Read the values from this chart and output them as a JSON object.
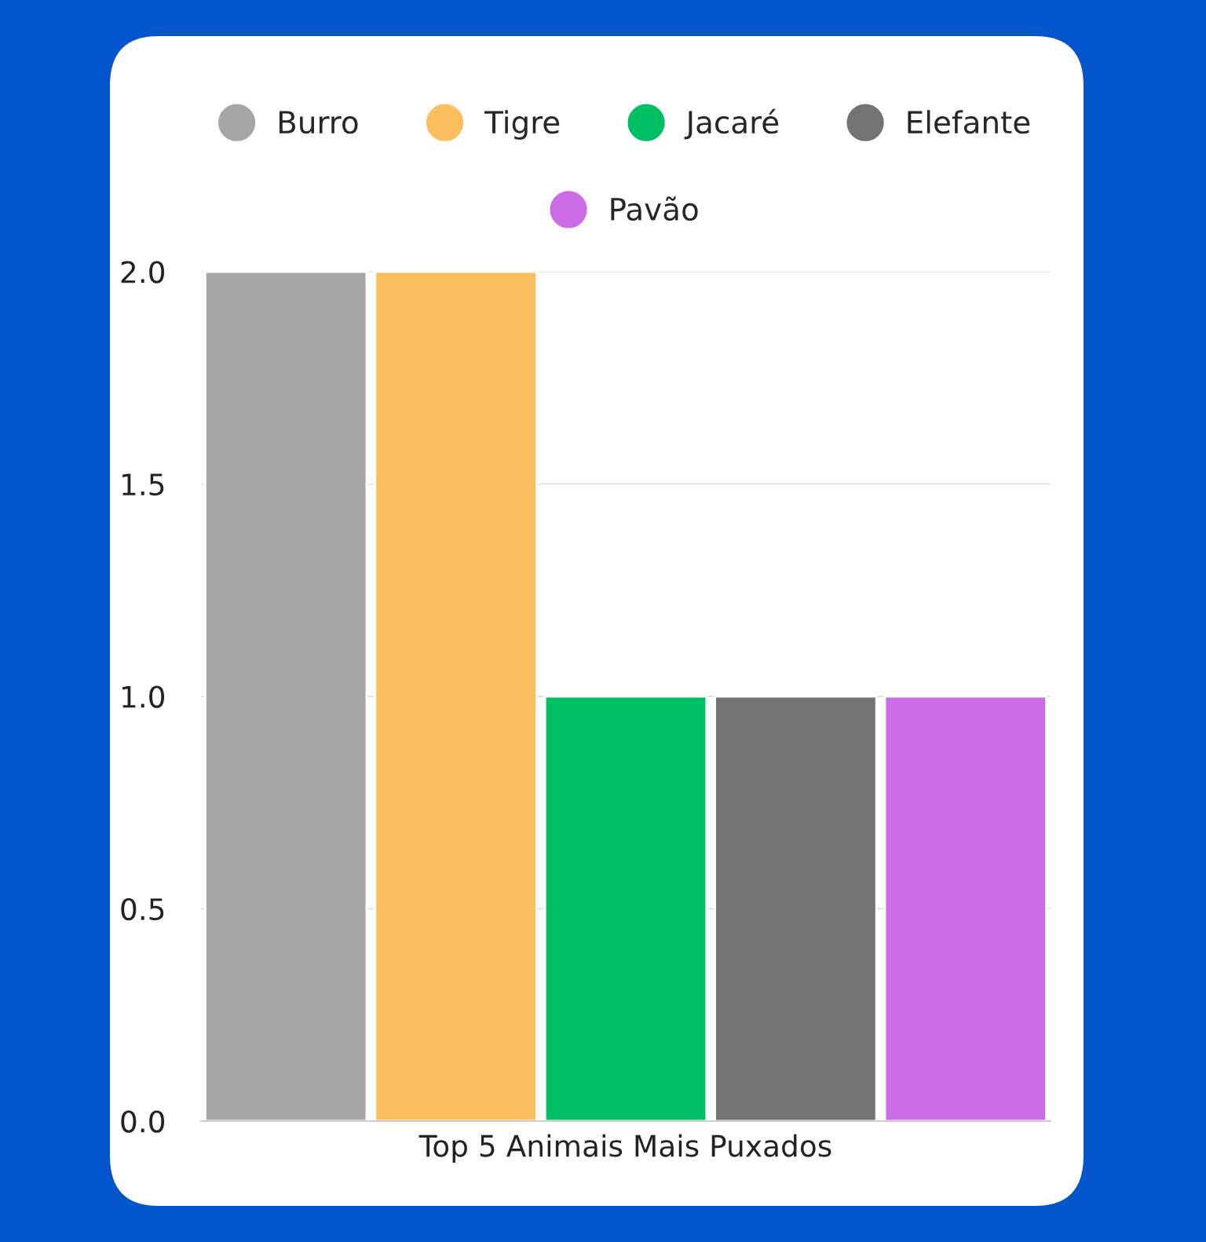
{
  "chart_data": {
    "type": "bar",
    "categories": [
      "Top 5 Animais Mais Puxados"
    ],
    "series": [
      {
        "name": "Burro",
        "color": "#a6a6a6",
        "values": [
          2
        ]
      },
      {
        "name": "Tigre",
        "color": "#fdbf5e",
        "values": [
          2
        ]
      },
      {
        "name": "Jacaré",
        "color": "#00bf63",
        "values": [
          1
        ]
      },
      {
        "name": "Elefante",
        "color": "#737373",
        "values": [
          1
        ]
      },
      {
        "name": "Pavão",
        "color": "#cb6ce6",
        "values": [
          1
        ]
      }
    ],
    "ylim": [
      0,
      2
    ],
    "yticks": [
      {
        "value": 0,
        "label": "0.0"
      },
      {
        "value": 0.5,
        "label": "0.5"
      },
      {
        "value": 1,
        "label": "1.0"
      },
      {
        "value": 1.5,
        "label": "1.5"
      },
      {
        "value": 2,
        "label": "2.0"
      }
    ],
    "grid": "y",
    "legend": "top",
    "marker": "circle"
  }
}
